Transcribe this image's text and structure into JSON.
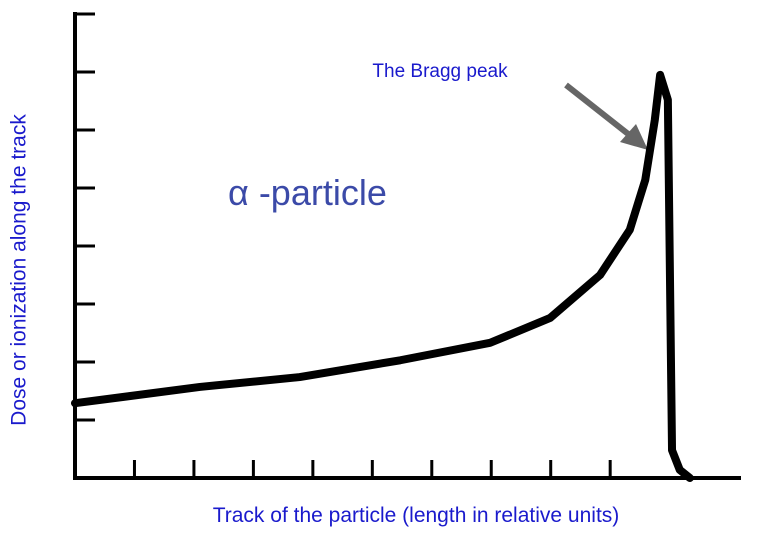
{
  "chart_data": {
    "type": "line",
    "xlabel": "Track of the particle (length in relative units)",
    "ylabel": "Dose or ionization  along the track",
    "annotations": [
      "The Bragg peak",
      "α -particle"
    ],
    "x": [
      0,
      2.1,
      3.78,
      5.47,
      6.98,
      7.99,
      8.83,
      9.33,
      9.59,
      9.75,
      9.84,
      9.97,
      10.04,
      10.17,
      10.34
    ],
    "series": [
      {
        "color": "#000000",
        "values": [
          1.29,
          1.57,
          1.74,
          2.03,
          2.33,
          2.76,
          3.5,
          4.28,
          5.14,
          6.17,
          6.95,
          6.52,
          0.48,
          0.14,
          0
        ]
      }
    ],
    "xlim": [
      0,
      11.2
    ],
    "ylim": [
      0,
      8.1
    ],
    "xticks": [
      1,
      2,
      3,
      4,
      5,
      6,
      7,
      8,
      9
    ],
    "yticks": [
      1,
      2,
      3,
      4,
      5,
      6,
      7,
      8
    ]
  }
}
